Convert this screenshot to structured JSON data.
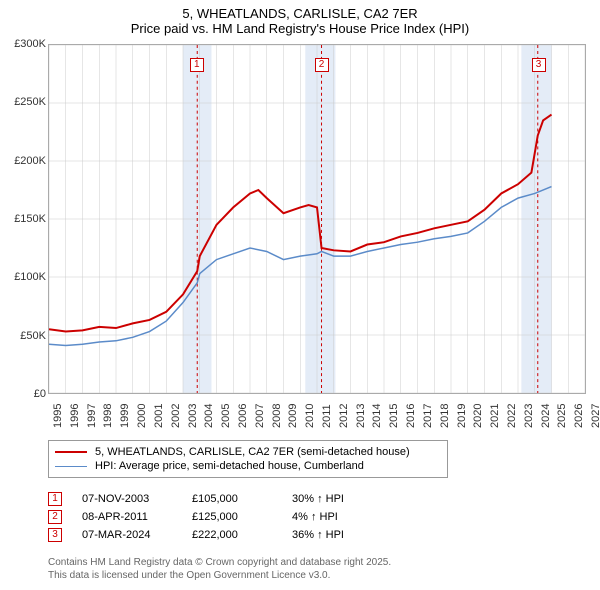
{
  "title": {
    "line1": "5, WHEATLANDS, CARLISLE, CA2 7ER",
    "line2": "Price paid vs. HM Land Registry's House Price Index (HPI)"
  },
  "chart": {
    "type": "line",
    "background_color": "#ffffff",
    "plot_border_color": "#aaaaaa",
    "grid_color": "#cccccc",
    "band_color": "#e4ecf7",
    "x_axis": {
      "min": 1995,
      "max": 2027,
      "tick_step": 1,
      "label_fontsize": 11,
      "label_rotation": -90
    },
    "y_axis": {
      "min": 0,
      "max": 300000,
      "tick_step": 50000,
      "tick_labels": [
        "£0",
        "£50K",
        "£100K",
        "£150K",
        "£200K",
        "£250K",
        "£300K"
      ],
      "label_fontsize": 11
    },
    "bands": [
      {
        "start": 2003.0,
        "end": 2004.7
      },
      {
        "start": 2010.3,
        "end": 2012.1
      },
      {
        "start": 2023.2,
        "end": 2025.0
      }
    ],
    "marker_lines": [
      {
        "x": 2003.85,
        "label": "1",
        "color": "#cc0000"
      },
      {
        "x": 2011.27,
        "label": "2",
        "color": "#cc0000"
      },
      {
        "x": 2024.18,
        "label": "3",
        "color": "#cc0000"
      }
    ],
    "series": [
      {
        "name": "5, WHEATLANDS, CARLISLE, CA2 7ER (semi-detached house)",
        "color": "#cc0000",
        "line_width": 2,
        "data": [
          [
            1995,
            55000
          ],
          [
            1996,
            53000
          ],
          [
            1997,
            54000
          ],
          [
            1998,
            57000
          ],
          [
            1999,
            56000
          ],
          [
            2000,
            60000
          ],
          [
            2001,
            63000
          ],
          [
            2002,
            70000
          ],
          [
            2003,
            85000
          ],
          [
            2003.85,
            105000
          ],
          [
            2004,
            118000
          ],
          [
            2005,
            145000
          ],
          [
            2006,
            160000
          ],
          [
            2007,
            172000
          ],
          [
            2007.5,
            175000
          ],
          [
            2008,
            168000
          ],
          [
            2009,
            155000
          ],
          [
            2010,
            160000
          ],
          [
            2010.5,
            162000
          ],
          [
            2011,
            160000
          ],
          [
            2011.27,
            125000
          ],
          [
            2012,
            123000
          ],
          [
            2013,
            122000
          ],
          [
            2014,
            128000
          ],
          [
            2015,
            130000
          ],
          [
            2016,
            135000
          ],
          [
            2017,
            138000
          ],
          [
            2018,
            142000
          ],
          [
            2019,
            145000
          ],
          [
            2020,
            148000
          ],
          [
            2021,
            158000
          ],
          [
            2022,
            172000
          ],
          [
            2023,
            180000
          ],
          [
            2023.8,
            190000
          ],
          [
            2024.18,
            222000
          ],
          [
            2024.5,
            235000
          ],
          [
            2025,
            240000
          ]
        ]
      },
      {
        "name": "HPI: Average price, semi-detached house, Cumberland",
        "color": "#5b8bc9",
        "line_width": 1.5,
        "data": [
          [
            1995,
            42000
          ],
          [
            1996,
            41000
          ],
          [
            1997,
            42000
          ],
          [
            1998,
            44000
          ],
          [
            1999,
            45000
          ],
          [
            2000,
            48000
          ],
          [
            2001,
            53000
          ],
          [
            2002,
            62000
          ],
          [
            2003,
            78000
          ],
          [
            2003.85,
            95000
          ],
          [
            2004,
            103000
          ],
          [
            2005,
            115000
          ],
          [
            2006,
            120000
          ],
          [
            2007,
            125000
          ],
          [
            2008,
            122000
          ],
          [
            2009,
            115000
          ],
          [
            2010,
            118000
          ],
          [
            2011,
            120000
          ],
          [
            2011.27,
            122000
          ],
          [
            2012,
            118000
          ],
          [
            2013,
            118000
          ],
          [
            2014,
            122000
          ],
          [
            2015,
            125000
          ],
          [
            2016,
            128000
          ],
          [
            2017,
            130000
          ],
          [
            2018,
            133000
          ],
          [
            2019,
            135000
          ],
          [
            2020,
            138000
          ],
          [
            2021,
            148000
          ],
          [
            2022,
            160000
          ],
          [
            2023,
            168000
          ],
          [
            2024,
            172000
          ],
          [
            2025,
            178000
          ]
        ]
      }
    ]
  },
  "legend": {
    "items": [
      {
        "label": "5, WHEATLANDS, CARLISLE, CA2 7ER (semi-detached house)",
        "color": "#cc0000",
        "width": 2
      },
      {
        "label": "HPI: Average price, semi-detached house, Cumberland",
        "color": "#5b8bc9",
        "width": 1.5
      }
    ]
  },
  "transactions": [
    {
      "marker": "1",
      "date": "07-NOV-2003",
      "price": "£105,000",
      "pct": "30% ↑ HPI"
    },
    {
      "marker": "2",
      "date": "08-APR-2011",
      "price": "£125,000",
      "pct": "4% ↑ HPI"
    },
    {
      "marker": "3",
      "date": "07-MAR-2024",
      "price": "£222,000",
      "pct": "36% ↑ HPI"
    }
  ],
  "footer": {
    "line1": "Contains HM Land Registry data © Crown copyright and database right 2025.",
    "line2": "This data is licensed under the Open Government Licence v3.0."
  }
}
